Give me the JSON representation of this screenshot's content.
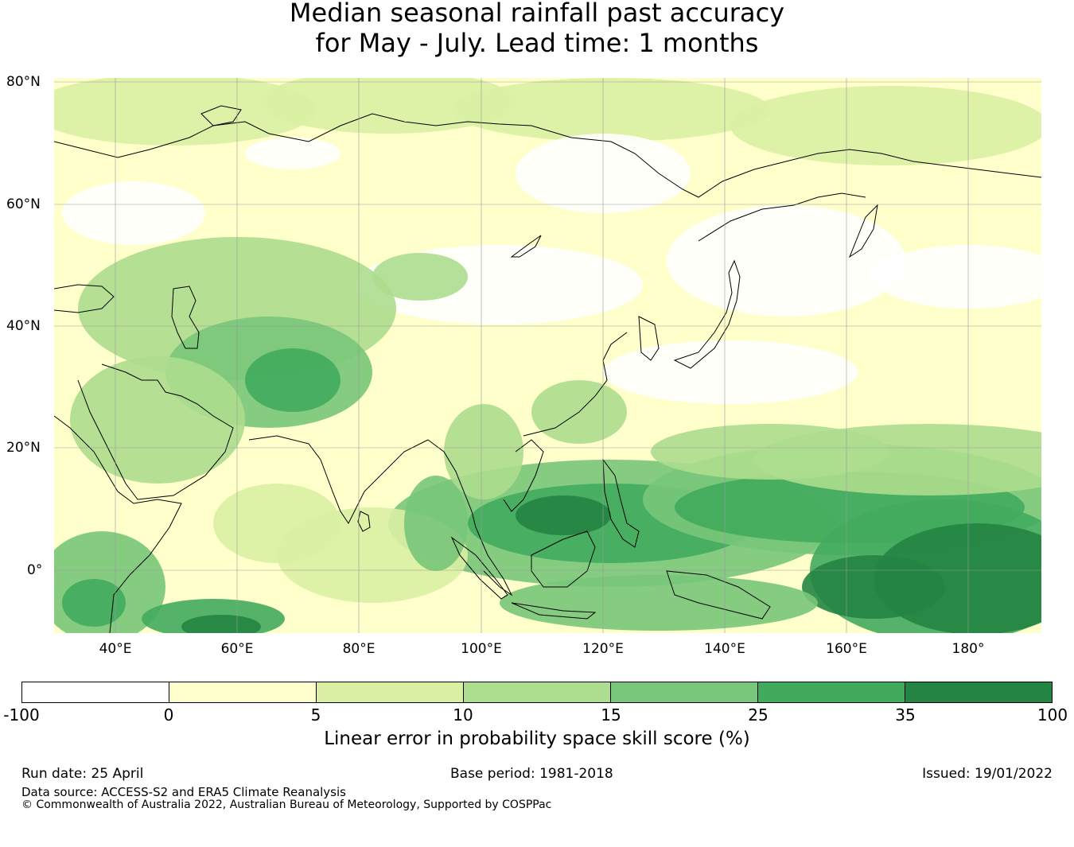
{
  "title": {
    "line1": "Median seasonal rainfall past accuracy",
    "line2": "for May - July. Lead time: 1 months"
  },
  "map": {
    "lat_labels": [
      "80°N",
      "60°N",
      "40°N",
      "20°N",
      "0°"
    ],
    "lon_labels": [
      "40°E",
      "60°E",
      "80°E",
      "100°E",
      "120°E",
      "140°E",
      "160°E",
      "180°"
    ],
    "land_outline_color": "#000000",
    "grid_color": "#999999"
  },
  "colorbar": {
    "ticks": [
      "-100",
      "0",
      "5",
      "10",
      "15",
      "25",
      "35",
      "100"
    ],
    "colors": [
      "#ffffff",
      "#ffffcc",
      "#d9f0a3",
      "#addd8e",
      "#78c679",
      "#41ab5d",
      "#238443"
    ],
    "label": "Linear error in probability space skill score (%)"
  },
  "footer": {
    "run_date": "Run date: 25 April",
    "base_period": "Base period: 1981-2018",
    "issued": "Issued: 19/01/2022",
    "data_source": "Data source: ACCESS-S2 and ERA5 Climate Reanalysis",
    "copyright": "© Commonwealth of Australia 2022, Australian Bureau of Meteorology, Supported by COSPPac"
  }
}
